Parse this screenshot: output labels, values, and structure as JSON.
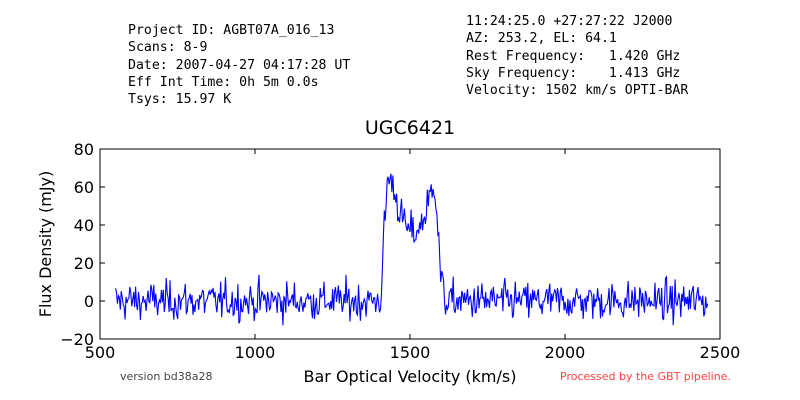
{
  "header": {
    "left_lines": [
      "Project ID: AGBT07A_016_13",
      "Scans: 8-9",
      "Date: 2007-04-27 04:17:28 UT",
      "Eff Int Time: 0h 5m 0.0s",
      "Tsys: 15.97 K"
    ],
    "right_lines": [
      "11:24:25.0 +27:27:22 J2000",
      "AZ: 253.2, EL: 64.1",
      "Rest Frequency:   1.420 GHz",
      "Sky Frequency:    1.413 GHz",
      "Velocity: 1502 km/s OPTI-BAR"
    ]
  },
  "footer": {
    "version": "version bd38a28",
    "pipeline": "Processed by the GBT pipeline.",
    "pipeline_color": "#ff4444",
    "version_color": "#444444"
  },
  "chart_data": {
    "type": "line",
    "title": "UGC6421",
    "xlabel": "Bar Optical Velocity (km/s)",
    "ylabel": "Flux Density (mJy)",
    "xlim": [
      500,
      2500
    ],
    "ylim": [
      -20,
      80
    ],
    "xticks": [
      500,
      1000,
      1500,
      2000,
      2500
    ],
    "yticks": [
      -20,
      0,
      20,
      40,
      60,
      80
    ],
    "grid": false,
    "line_color": "#0000ff",
    "x_range": [
      550,
      2460
    ],
    "n_points": 620,
    "noise_rms": 5,
    "profile": [
      {
        "x": 550,
        "y": 0
      },
      {
        "x": 1405,
        "y": 0
      },
      {
        "x": 1418,
        "y": 40
      },
      {
        "x": 1428,
        "y": 65
      },
      {
        "x": 1440,
        "y": 63
      },
      {
        "x": 1455,
        "y": 55
      },
      {
        "x": 1470,
        "y": 45
      },
      {
        "x": 1490,
        "y": 38
      },
      {
        "x": 1510,
        "y": 36
      },
      {
        "x": 1530,
        "y": 38
      },
      {
        "x": 1550,
        "y": 46
      },
      {
        "x": 1570,
        "y": 58
      },
      {
        "x": 1578,
        "y": 64
      },
      {
        "x": 1586,
        "y": 50
      },
      {
        "x": 1600,
        "y": 10
      },
      {
        "x": 1615,
        "y": 0
      },
      {
        "x": 2460,
        "y": 0
      }
    ]
  }
}
